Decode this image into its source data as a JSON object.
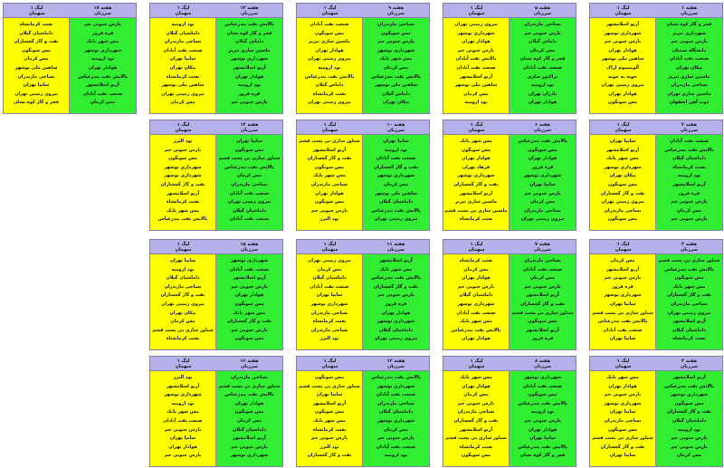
{
  "colors": {
    "header": "#b5b0ea",
    "home": "#ffff00",
    "away": "#32ee32",
    "border": "#7f7f9f"
  },
  "cards": [
    {
      "week": "هفته ۱",
      "league": "لیگ ۱",
      "sub_a": "سرزنان",
      "sub_b": "سهمان",
      "green": [
        "فجر و گاز کوه نشان",
        "شهرداری تبریز",
        "پارس جنوبی جم",
        "دانشگاه سمنان",
        "صنعت نفت آبادان",
        "پیکان تهران",
        "ماشین سازی تبریز",
        "نساجی مازندران",
        "ماشین سازی تهران",
        "ذوب آهن اصفهان"
      ],
      "yellow": [
        "آریو اسلامشهر",
        "شهرداری نوشهر",
        "پارس جنوبی جم",
        "هوادار تهران",
        "شاهین ملی بوشهر",
        "آلومینیوم اراک",
        "خونه به خونه",
        "نیروی زمینی تهران",
        "هوادار تهران",
        "مس سونگون"
      ]
    },
    {
      "week": "هفته ۵",
      "league": "لیگ ۱",
      "sub_a": "سرزنان",
      "sub_b": "سهمان",
      "green": [
        "نساجی مازندران",
        "پارس جنوبی جم",
        "داماش گیلان",
        "مس کرمان",
        "فجر و گاز کوه نشان",
        "صنعت نفت آبادان",
        "تراکتور سازی",
        "نود ارومیه",
        "بادران تهران",
        "هوادار تهران"
      ],
      "yellow": [
        "نیروی زمینی تهران",
        "شهرداری نوشهر",
        "هوادار تهران",
        "پارس جنوبی جم",
        "پالایش نفت آبادان",
        "صنعت نفت آبادان",
        "آریو اسلامشهر",
        "شاهین ملی بوشهر",
        "مس کرمان",
        "نود ارومیه"
      ]
    },
    {
      "week": "هفته ۹",
      "league": "لیگ ۱",
      "sub_a": "سرزنان",
      "sub_b": "سهمان",
      "green": [
        "نساجی مازندران",
        "مس سونگون",
        "پارس جنوبی جم",
        "شهرداری نوشهر",
        "مس شهر بابک",
        "مس کرمان",
        "پالایش نفت بندرعباس",
        "شاهین ملی بوشهر",
        "داماش گیلان",
        "پیکان تهران"
      ],
      "yellow": [
        "صنعت نفت آبادان",
        "مس سونگون",
        "ماشین سازی تبریز",
        "هوادار تهران",
        "نیروی زمینی تهران",
        "نود ارومیه",
        "پالایش نفت بندرعباس",
        "داماش گیلان",
        "بعثت کرمانشاه",
        "نیروی زمینی تهران"
      ]
    },
    {
      "week": "هفته ۱۳",
      "league": "لیگ ۱",
      "sub_a": "سرزنان",
      "sub_b": "سهمان",
      "green": [
        "پالایش نفت بندرعباس",
        "فجر و گاز کوه نشان",
        "داماش گیلان",
        "ماشین سازی تبریز",
        "شهرداری نوشهر",
        "آریو اسلامشهر",
        "هوادار تهران",
        "نود ارومیه",
        "قره قروز",
        "پارس جنوبی جم"
      ],
      "yellow": [
        "نود ارومیه",
        "داماشیان گیلان",
        "نساجی مازندران",
        "صنعت نفت آبادان",
        "سایپا تهران",
        "پیکان تهران",
        "بعثت کرمانشاه",
        "شاهین ملی بوشهر",
        "نیروی زمینی تهران",
        "مس کرمان"
      ]
    },
    {
      "week": "هفته ۱۷",
      "league": "لیگ ۱",
      "sub_a": "سرزنان",
      "sub_b": "سهمان",
      "green": [
        "پارس جنوبی جم",
        "قره قروز",
        "مس شهر بابک",
        "شهرداری نوشهر",
        "نود ارومیه",
        "هوادار تهران",
        "پالایش نفت بندرعباس",
        "آریو اسلامشهر",
        "صنعت نفت آبادان",
        "مس کرمان"
      ],
      "yellow": [
        "بعثت کرمانشاه",
        "داماشیان گیلان",
        "نفت و گاز گچساران",
        "مس سونگون",
        "مس کرمان",
        "شاهین ملی بوشهر",
        "نساجی مازندران",
        "سایپا تهران",
        "نیروی زمینی تهران",
        "فجر و گاز کوه نشان"
      ]
    },
    {
      "week": "هفته ۲",
      "league": "لیگ ۱",
      "sub_a": "سرزنان",
      "sub_b": "سهمان",
      "green": [
        "صنعت نفت آبادان",
        "پالایش نفت بندرعباس",
        "داماشیان گیلان",
        "بعثت کرمانشاه",
        "نود ارومیه",
        "آریو اسلامشهر",
        "قره قروز",
        "پارس جنوبی جم",
        "مس کرمان",
        "پارس جنوبی جم"
      ],
      "yellow": [
        "سایپا تهران",
        "آریو اسلامشهر",
        "مس شهر بابک",
        "شهرداری نوشهر",
        "پیکان تهران",
        "مس سونگون",
        "نفت و گاز گچساران",
        "نیروی زمینی تهران",
        "نساجی مازندران",
        "مس سونگون"
      ]
    },
    {
      "week": "هفته ۶",
      "league": "لیگ ۱",
      "sub_a": "سرزنان",
      "sub_b": "سهمان",
      "green": [
        "پالایش نفت بندرعباس",
        "مس سونگون",
        "هوادار تهران",
        "قره قروز",
        "شهرداری نوشهر",
        "سایپا تهران",
        "پارس جنوبی جم",
        "مس کرمان",
        "نساجی مازندران",
        "نیروی زمینی تهران"
      ],
      "yellow": [
        "مس شهر بابک",
        "مس سونگون",
        "هوادار تهران",
        "فرهاد تهران",
        "شهرداری نوشهر",
        "نفت و گاز گچساران",
        "آریو اسلامشهر",
        "ماشین سازی تبریز",
        "ماشین سازی بی پشت قشم",
        "بعثت کرمانشاه"
      ]
    },
    {
      "week": "هفته ۱۰",
      "league": "لیگ ۱",
      "sub_a": "سرزنان",
      "sub_b": "سهمان",
      "green": [
        "سایپا تهران",
        "نود ارومیه",
        "صنعت نفت آبادان",
        "نفت و گاز گچساران",
        "شهرداری نوشهر",
        "مس کرمان",
        "شاهین ملی بوشهر",
        "داماشیان گیلان",
        "پالایش نفت بندرعباس",
        "نیروی زمینی تهران"
      ],
      "yellow": [
        "شناور سازی بی پشت قشم",
        "آریو اسلامشهر",
        "نفت و گاز گچساران",
        "مس سونگون",
        "مس شهر بابک",
        "نساجی مازندران",
        "هوادار تهران",
        "مس سونگون",
        "پارس جنوبی جم",
        "نود البرز"
      ]
    },
    {
      "week": "هفته ۱۴",
      "league": "لیگ ۱",
      "sub_a": "سرزنان",
      "sub_b": "سهمان",
      "green": [
        "سایپا تهران",
        "مس سونگون",
        "شناور سازی بی پشت قشم",
        "پالایش نفت بندرعباس",
        "مس کرمان",
        "نساجی مازندران",
        "صنعت نفت آبادان",
        "نیروی زمینی تهران",
        "داماشیان گیلان",
        "صنعت نفت آبادان"
      ],
      "yellow": [
        "نود البرز",
        "پارس جنوبی جم",
        "مس سونگون",
        "شهرداری نوشهر",
        "شهرداری نوشهر",
        "نفت و گاز گچساران",
        "آریو اسلامشهر",
        "بعثت کرمانشاه",
        "مس شهر بابک",
        "پالایش نفت بندرعباس"
      ]
    },
    {
      "week": "هفته ۳",
      "league": "لیگ ۱",
      "sub_a": "سرزنان",
      "sub_b": "سهمان",
      "green": [
        "شناور سازی بی پشت قشم",
        "پالایش نفت بندرعباس",
        "مس سونگون",
        "مس شهر بابک",
        "نفت و گاز گچساران",
        "نساجی مازندران",
        "نیروی زمینی تهران",
        "آریو اسلامشهر",
        "داماشیان گیلان",
        "بعثت کرمانشاه"
      ],
      "yellow": [
        "مس کرمان",
        "آریو اسلامشهر",
        "پارس جنوبی جم",
        "قره قروز",
        "شهرداری نوشهر",
        "سایپا تهران",
        "شناور سازی بی پشت قشم",
        "پالایش نفت بندرعباس",
        "صنعت نفت آبادان",
        "سایپا تهران"
      ]
    },
    {
      "week": "هفته ۷",
      "league": "لیگ ۱",
      "sub_a": "سرزنان",
      "sub_b": "سهمان",
      "green": [
        "نساجی مازندران",
        "صنعت نفت آبادان",
        "مس کرمان",
        "پارس جنوبی جم",
        "آریو اسلامشهر",
        "نفت و گاز گچساران",
        "شناور سازی بی پشت قشم",
        "مس سونگون",
        "آریو اسلامشهر",
        "قره قروز"
      ],
      "yellow": [
        "بعثت کرمانشاه",
        "مس کرمان",
        "هوادار تهران",
        "پارس جنوبی جم",
        "داماشیان گیلان",
        "شهرداری نوشهر",
        "صنعت نفت آبادان",
        "مس شهر بابک",
        "پالایش نفت بندرعباس",
        "هوادار تهران"
      ]
    },
    {
      "week": "هفته ۱۱",
      "league": "لیگ ۱",
      "sub_a": "سرزنان",
      "sub_b": "سهمان",
      "green": [
        "آریو اسلامشهر",
        "مس شهر بابک",
        "پالایش نفت بندرعباس",
        "نفت و گاز گچساران",
        "پارس جنوبی جم",
        "قره قروز",
        "هوادار تهران",
        "شهرداری نوشهر",
        "داماشیان گیلان",
        "نیروی زمینی تهران"
      ],
      "yellow": [
        "نیروی زمینی تهران",
        "مس کرمان",
        "داماشیان گیلان",
        "صنعت نفت آبادان",
        "سایپا تهران",
        "شهرداری نوشهر",
        "نساجی مازندران",
        "بعثت کرمانشاه",
        "نساجی مازندران",
        "نود البرز"
      ]
    },
    {
      "week": "هفته ۱۵",
      "league": "لیگ ۱",
      "sub_a": "سرزنان",
      "sub_b": "سهمان",
      "green": [
        "شهرداری نوشهر",
        "صنعت نفت آبادان",
        "آریو اسلامشهر",
        "پارس جنوبی جم",
        "هوادار تهران",
        "مس سونگون",
        "مس شهر بابک",
        "نفت و گاز گچساران",
        "پارس جنوبی جم",
        "مس سونگون"
      ],
      "yellow": [
        "سایپا تهران",
        "نود ارومیه",
        "داماشیان گیلان",
        "نساجی مازندران",
        "نفت و گاز گچساران",
        "نیروی زمینی تهران",
        "پیکان تهران",
        "مس کرمان",
        "شناور سازی بی پشت قشم",
        "بعثت کرمانشاه"
      ]
    },
    {
      "week": "هفته ۴",
      "league": "لیگ ۱",
      "sub_a": "سرزنان",
      "sub_b": "سهمان",
      "green": [
        "آریو اسلامشهر",
        "پالایش نفت بندرعباس",
        "شهرداری نوشهر",
        "مس سونگون",
        "نفت و گاز گچساران",
        "داماشیان گیلان",
        "نود ارومیه",
        "پارس جنوبی جم",
        "پارس جنوبی جم",
        "مس کرمان"
      ],
      "yellow": [
        "مس شهر بابک",
        "هوادار تهران",
        "پارس جنوبی جم",
        "شهرداری نوشهر",
        "سایپا تهران",
        "نساجی مازندران",
        "مس سونگون",
        "شناور سازی بی پشت قشم",
        "نفت و گاز گچساران",
        "سایپا تهران"
      ]
    },
    {
      "week": "هفته ۸",
      "league": "لیگ ۱",
      "sub_a": "سرزنان",
      "sub_b": "سهمان",
      "green": [
        "شهرداری نوشهر",
        "صنعت نفت آبادان",
        "مس سونگون",
        "پالایش نفت بندرعباس",
        "نود ارومیه",
        "پارس جنوبی جم",
        "هوادار تهران",
        "سایپا تهران",
        "پالایش نفت بندرعباس",
        "فجر و گاز کوه نشان"
      ],
      "yellow": [
        "مس شهر بابک",
        "هوادار تهران",
        "مس کرمان",
        "پارس جنوبی جم",
        "نساجی مازندران",
        "نفت و گاز گچساران",
        "آریو اسلامشهر",
        "شناور سازی بی پشت قشم",
        "بعثت کرمانشاه",
        "مس سونگون"
      ]
    },
    {
      "week": "هفته ۱۲",
      "league": "لیگ ۱",
      "sub_a": "سرزنان",
      "sub_b": "سهمان",
      "green": [
        "پالایش نفت بندرعباس",
        "شهرداری نوشهر",
        "صنعت نفت آبادان",
        "نساجی مازندران",
        "داماشیان گیلان",
        "شهرداری نوشهر",
        "مس کرمان",
        "پارس جنوبی جم",
        "صنعت نفت آبادان",
        "نود ارومیه"
      ],
      "yellow": [
        "مس سونگون",
        "شناور سازی بی پشت قشم",
        "سایپا تهران",
        "آریو اسلامشهر",
        "مس سونگون",
        "مس شهر بابک",
        "بعثت کرمانشاه",
        "پارس جنوبی جم",
        "نود البرز",
        "نفت و گاز گچساران"
      ]
    },
    {
      "week": "هفته ۱۶",
      "league": "لیگ ۱",
      "sub_a": "سرزنان",
      "sub_b": "سهمان",
      "green": [
        "نساجی مازندران",
        "شناور سازی بی پشت قشم",
        "پالایش نفت بندرعباس",
        "هوادار تهران",
        "مس سونگون",
        "مس کرمان",
        "داماشیان گیلان",
        "آریو اسلامشهر",
        "پارس جنوبی جم",
        "شهرداری نوشهر"
      ],
      "yellow": [
        "نود البرز",
        "آریو اسلامشهر",
        "شهرداری نوشهر",
        "نود ارومیه",
        "مس شهر بابک",
        "صنعت نفت آبادان",
        "پارس جنوبی جم",
        "سایپا تهران",
        "هوادار تهران",
        "پارس جنوبی جم"
      ]
    }
  ]
}
